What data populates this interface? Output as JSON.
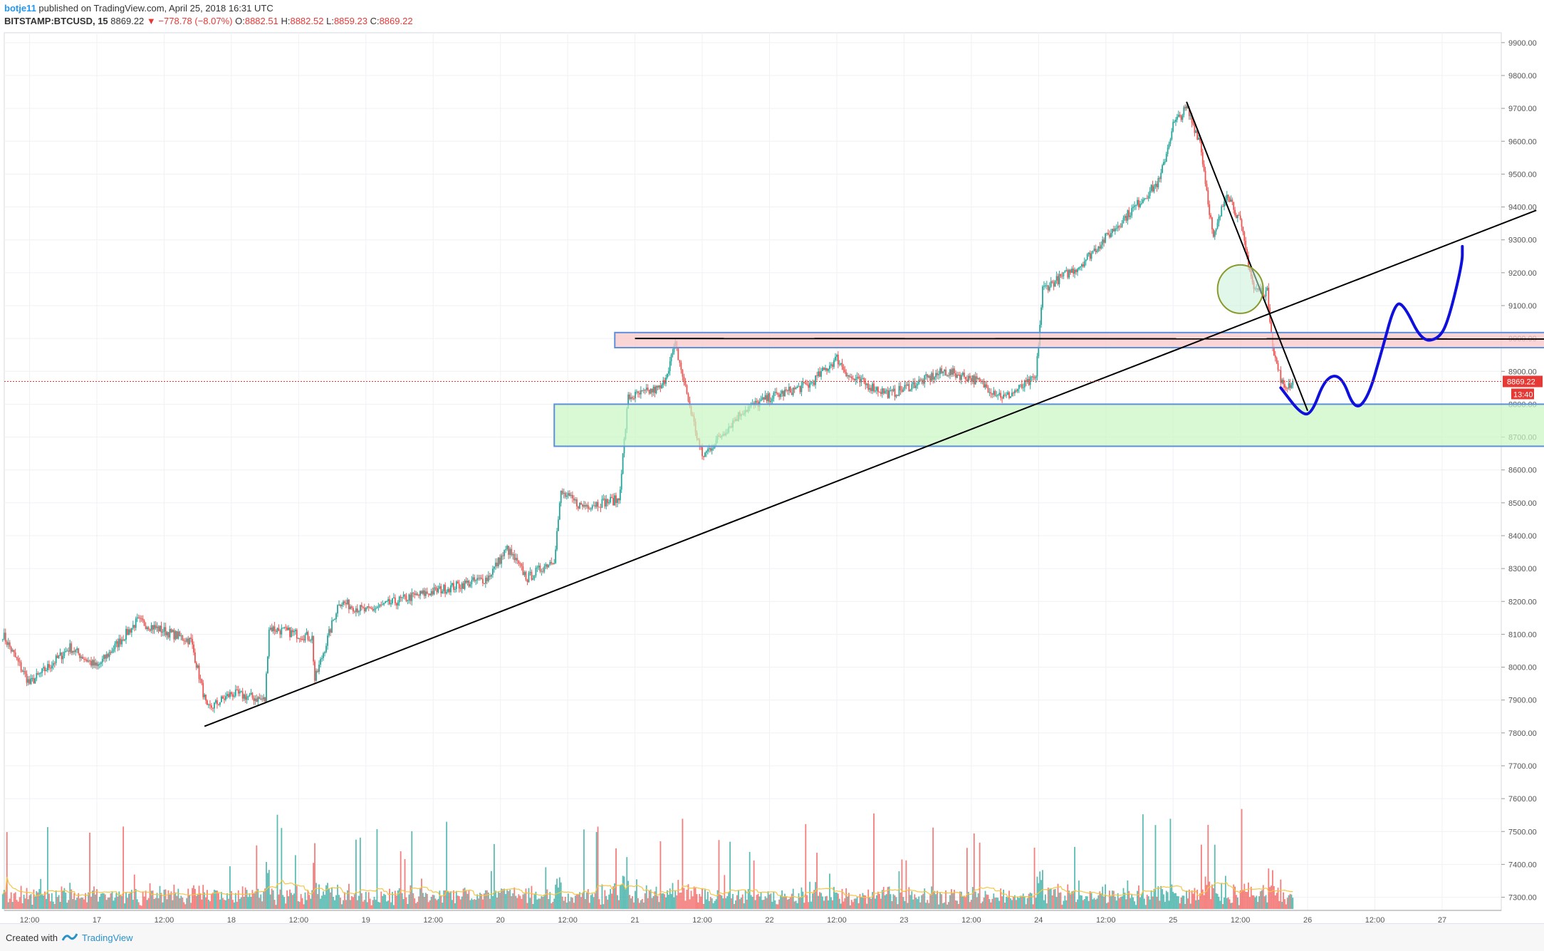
{
  "header": {
    "user": "botje11",
    "published": "published on TradingView.com, April 25, 2018 16:31 UTC"
  },
  "ohlc": {
    "symbol": "BITSTAMP:BTCUSD, 15",
    "last": "8869.22",
    "change": "−778.78 (−8.07%)",
    "o_label": "O:",
    "o": "8882.51",
    "h_label": "H:",
    "h": "8882.52",
    "l_label": "L:",
    "l": "8859.23",
    "c_label": "C:",
    "c": "8869.22"
  },
  "footer": {
    "created_with": "Created with",
    "brand": "TradingView"
  },
  "colors": {
    "up": "#26a69a",
    "down": "#ef5350",
    "grid": "#eef1f6",
    "resistance_fill": "#f8c7c7",
    "support_fill": "#c8f7c0",
    "box_stroke": "#5c8fdc",
    "projection": "#1010dd",
    "circle": "#8a9a2a",
    "price_tag": "#e53935"
  },
  "chart_data": {
    "type": "candlestick",
    "y_ticks": [
      "9900.00",
      "9800.00",
      "9700.00",
      "9600.00",
      "9500.00",
      "9400.00",
      "9300.00",
      "9200.00",
      "9100.00",
      "9000.00",
      "8900.00",
      "8800.00",
      "8700.00",
      "8600.00",
      "8500.00",
      "8400.00",
      "8300.00",
      "8200.00",
      "8100.00",
      "8000.00",
      "7900.00",
      "7800.00",
      "7700.00",
      "7600.00",
      "7500.00",
      "7400.00",
      "7300.00"
    ],
    "ylim": [
      7260,
      9930
    ],
    "x_ticks": [
      "12:00",
      "17",
      "12:00",
      "18",
      "12:00",
      "19",
      "12:00",
      "20",
      "12:00",
      "21",
      "12:00",
      "22",
      "12:00",
      "23",
      "12:00",
      "24",
      "12:00",
      "25",
      "12:00",
      "26",
      "12:00",
      "27"
    ],
    "x_tick_days": [
      16.5,
      17,
      17.5,
      18,
      18.5,
      19,
      19.5,
      20,
      20.5,
      21,
      21.5,
      22,
      22.5,
      23,
      23.5,
      24,
      24.5,
      25,
      25.5,
      26,
      26.5,
      27
    ],
    "last_price": "8869.22",
    "countdown": "13:40",
    "path": [
      [
        16.3,
        8100
      ],
      [
        16.5,
        7950
      ],
      [
        16.8,
        8060
      ],
      [
        17.0,
        8000
      ],
      [
        17.3,
        8140
      ],
      [
        17.7,
        8080
      ],
      [
        17.82,
        7870
      ],
      [
        18.0,
        7920
      ],
      [
        18.25,
        7900
      ],
      [
        18.28,
        8120
      ],
      [
        18.6,
        8090
      ],
      [
        18.62,
        7960
      ],
      [
        18.8,
        8200
      ],
      [
        19.0,
        8170
      ],
      [
        19.3,
        8210
      ],
      [
        19.6,
        8240
      ],
      [
        19.9,
        8270
      ],
      [
        20.05,
        8360
      ],
      [
        20.2,
        8270
      ],
      [
        20.4,
        8330
      ],
      [
        20.45,
        8530
      ],
      [
        20.6,
        8490
      ],
      [
        20.88,
        8510
      ],
      [
        20.95,
        8820
      ],
      [
        21.2,
        8850
      ],
      [
        21.3,
        8980
      ],
      [
        21.45,
        8720
      ],
      [
        21.5,
        8640
      ],
      [
        21.8,
        8780
      ],
      [
        22.0,
        8820
      ],
      [
        22.3,
        8860
      ],
      [
        22.5,
        8940
      ],
      [
        22.6,
        8880
      ],
      [
        22.9,
        8830
      ],
      [
        23.3,
        8900
      ],
      [
        23.5,
        8880
      ],
      [
        23.75,
        8820
      ],
      [
        23.98,
        8880
      ],
      [
        24.03,
        9150
      ],
      [
        24.3,
        9220
      ],
      [
        24.6,
        9350
      ],
      [
        24.9,
        9480
      ],
      [
        25.0,
        9650
      ],
      [
        25.1,
        9700
      ],
      [
        25.2,
        9600
      ],
      [
        25.3,
        9300
      ],
      [
        25.4,
        9450
      ],
      [
        25.5,
        9350
      ],
      [
        25.6,
        9150
      ],
      [
        25.7,
        9140
      ],
      [
        25.75,
        8950
      ],
      [
        25.82,
        8850
      ],
      [
        25.9,
        8869
      ]
    ],
    "annotations": {
      "trendline_up": [
        [
          17.8,
          7820
        ],
        [
          27.7,
          9390
        ]
      ],
      "trendline_down": [
        [
          25.1,
          9720
        ],
        [
          26.0,
          8780
        ]
      ],
      "resistance_line": [
        [
          21.0,
          9000
        ],
        [
          28.95,
          8998
        ]
      ],
      "resistance_zone": [
        20.85,
        28.4,
        8972,
        9018
      ],
      "support_zone": [
        20.4,
        28.75,
        8672,
        8800
      ],
      "circle": [
        25.5,
        9150
      ],
      "projection": [
        [
          25.8,
          8850
        ],
        [
          25.95,
          8770
        ],
        [
          26.03,
          8770
        ],
        [
          26.13,
          8880
        ],
        [
          26.25,
          8890
        ],
        [
          26.35,
          8780
        ],
        [
          26.45,
          8820
        ],
        [
          26.55,
          8960
        ],
        [
          26.65,
          9110
        ],
        [
          26.72,
          9100
        ],
        [
          26.85,
          8990
        ],
        [
          26.98,
          9000
        ],
        [
          27.05,
          9060
        ],
        [
          27.15,
          9230
        ],
        [
          27.15,
          9280
        ]
      ]
    }
  }
}
